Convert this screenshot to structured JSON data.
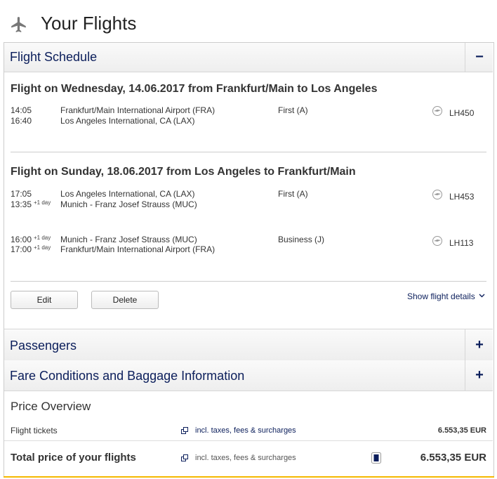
{
  "header": {
    "title": "Your Flights"
  },
  "schedule": {
    "title": "Flight Schedule",
    "toggle": "−",
    "journeys": [
      {
        "heading": "Flight on Wednesday, 14.06.2017 from Frankfurt/Main to Los Angeles",
        "segments": [
          {
            "dep_time": "14:05",
            "dep_airport": "Frankfurt/Main International Airport (FRA)",
            "arr_time": "16:40",
            "arr_airport": "Los Angeles International, CA (LAX)",
            "cabin": "First (A)",
            "flight": "LH450"
          }
        ]
      },
      {
        "heading": "Flight on Sunday, 18.06.2017 from Los Angeles to Frankfurt/Main",
        "segments": [
          {
            "dep_time": "17:05",
            "dep_airport": "Los Angeles International, CA (LAX)",
            "arr_time": "13:35",
            "arr_day": "+1 day",
            "arr_airport": "Munich - Franz Josef Strauss (MUC)",
            "cabin": "First (A)",
            "flight": "LH453"
          },
          {
            "dep_time": "16:00",
            "dep_day": "+1 day",
            "dep_airport": "Munich - Franz Josef Strauss (MUC)",
            "arr_time": "17:00",
            "arr_day": "+1 day",
            "arr_airport": "Frankfurt/Main International Airport (FRA)",
            "cabin": "Business (J)",
            "flight": "LH113"
          }
        ]
      }
    ],
    "buttons": {
      "edit": "Edit",
      "delete": "Delete",
      "details": "Show flight details"
    }
  },
  "sections": [
    {
      "title": "Passengers",
      "toggle": "+"
    },
    {
      "title": "Fare Conditions and Baggage Information",
      "toggle": "+"
    }
  ],
  "price": {
    "title": "Price Overview",
    "rows": [
      {
        "label": "Flight tickets",
        "note": "incl. taxes, fees & surcharges",
        "amount": "6.553,35 EUR"
      }
    ],
    "total": {
      "label": "Total price of your flights",
      "note": "incl. taxes, fees & surcharges",
      "amount": "6.553,35 EUR"
    }
  }
}
